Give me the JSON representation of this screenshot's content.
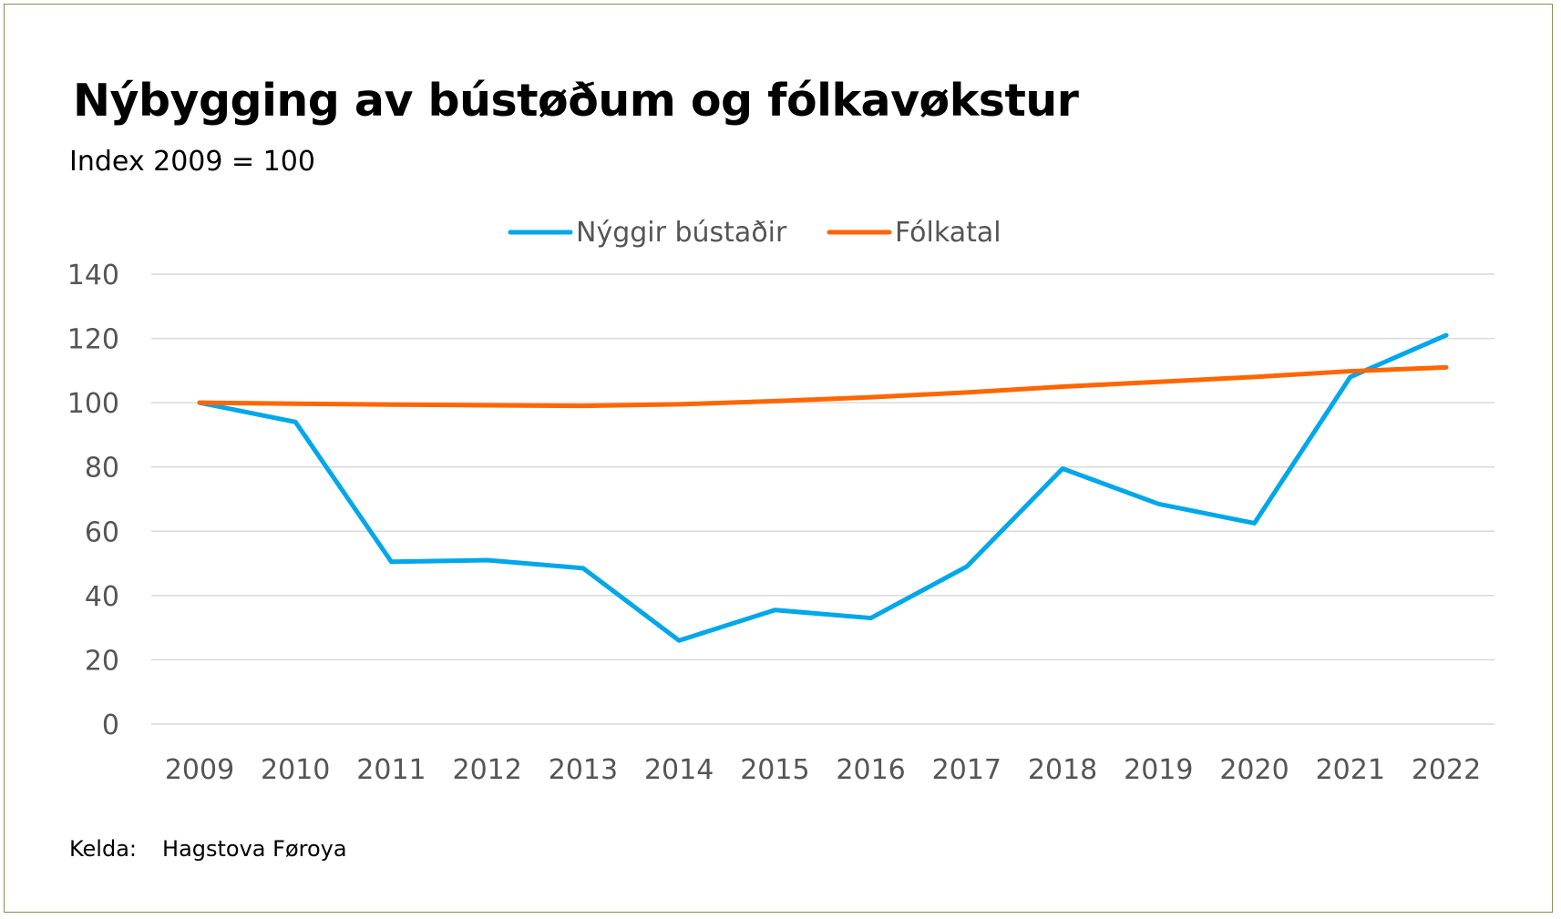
{
  "chart_data": {
    "type": "line",
    "title": "Nýbygging av bústøðum og fólkavøkstur",
    "subtitle": "Index 2009 = 100",
    "xlabel": "",
    "ylabel": "",
    "categories": [
      "2009",
      "2010",
      "2011",
      "2012",
      "2013",
      "2014",
      "2015",
      "2016",
      "2017",
      "2018",
      "2019",
      "2020",
      "2021",
      "2022"
    ],
    "series": [
      {
        "name": "Nýggir bústaðir",
        "color": "#00a7ea",
        "values": [
          100,
          94,
          50.5,
          51,
          48.5,
          26,
          35.5,
          33,
          49,
          79.5,
          68.5,
          62.5,
          108,
          121
        ]
      },
      {
        "name": "Fólkatal",
        "color": "#ff6600",
        "values": [
          100,
          99.7,
          99.4,
          99.2,
          99,
          99.5,
          100.5,
          101.7,
          103.2,
          105,
          106.5,
          108,
          109.8,
          111
        ]
      }
    ],
    "ylim": [
      0,
      140
    ],
    "yticks": [
      "0",
      "20",
      "40",
      "60",
      "80",
      "100",
      "120",
      "140"
    ],
    "grid": true,
    "legend_position": "top-center",
    "source_label": "Kelda:",
    "source": "Hagstova Føroya"
  }
}
